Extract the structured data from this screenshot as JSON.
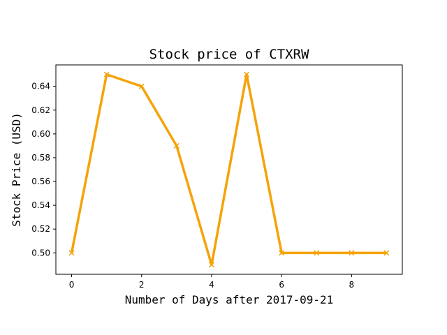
{
  "chart_data": {
    "type": "line",
    "title": "Stock price of CTXRW",
    "xlabel": "Number of Days after 2017-09-21",
    "ylabel": "Stock Price (USD)",
    "xlim": [
      -0.45,
      9.45
    ],
    "ylim": [
      0.482,
      0.658
    ],
    "x_ticks": [
      0,
      2,
      4,
      6,
      8
    ],
    "y_ticks": [
      0.5,
      0.52,
      0.54,
      0.56,
      0.58,
      0.6,
      0.62,
      0.64
    ],
    "x_tick_labels": [
      "0",
      "2",
      "4",
      "6",
      "8"
    ],
    "y_tick_labels": [
      "0.50",
      "0.52",
      "0.54",
      "0.56",
      "0.58",
      "0.60",
      "0.62",
      "0.64"
    ],
    "grid": false,
    "legend": "none",
    "series": [
      {
        "x": [
          0,
          1,
          2,
          3,
          4,
          5,
          6,
          7,
          8,
          9
        ],
        "values": [
          0.5,
          0.65,
          0.64,
          0.59,
          0.49,
          0.65,
          0.5,
          0.5,
          0.5,
          0.5
        ],
        "color": "#f5a30a",
        "marker": "x"
      }
    ]
  }
}
